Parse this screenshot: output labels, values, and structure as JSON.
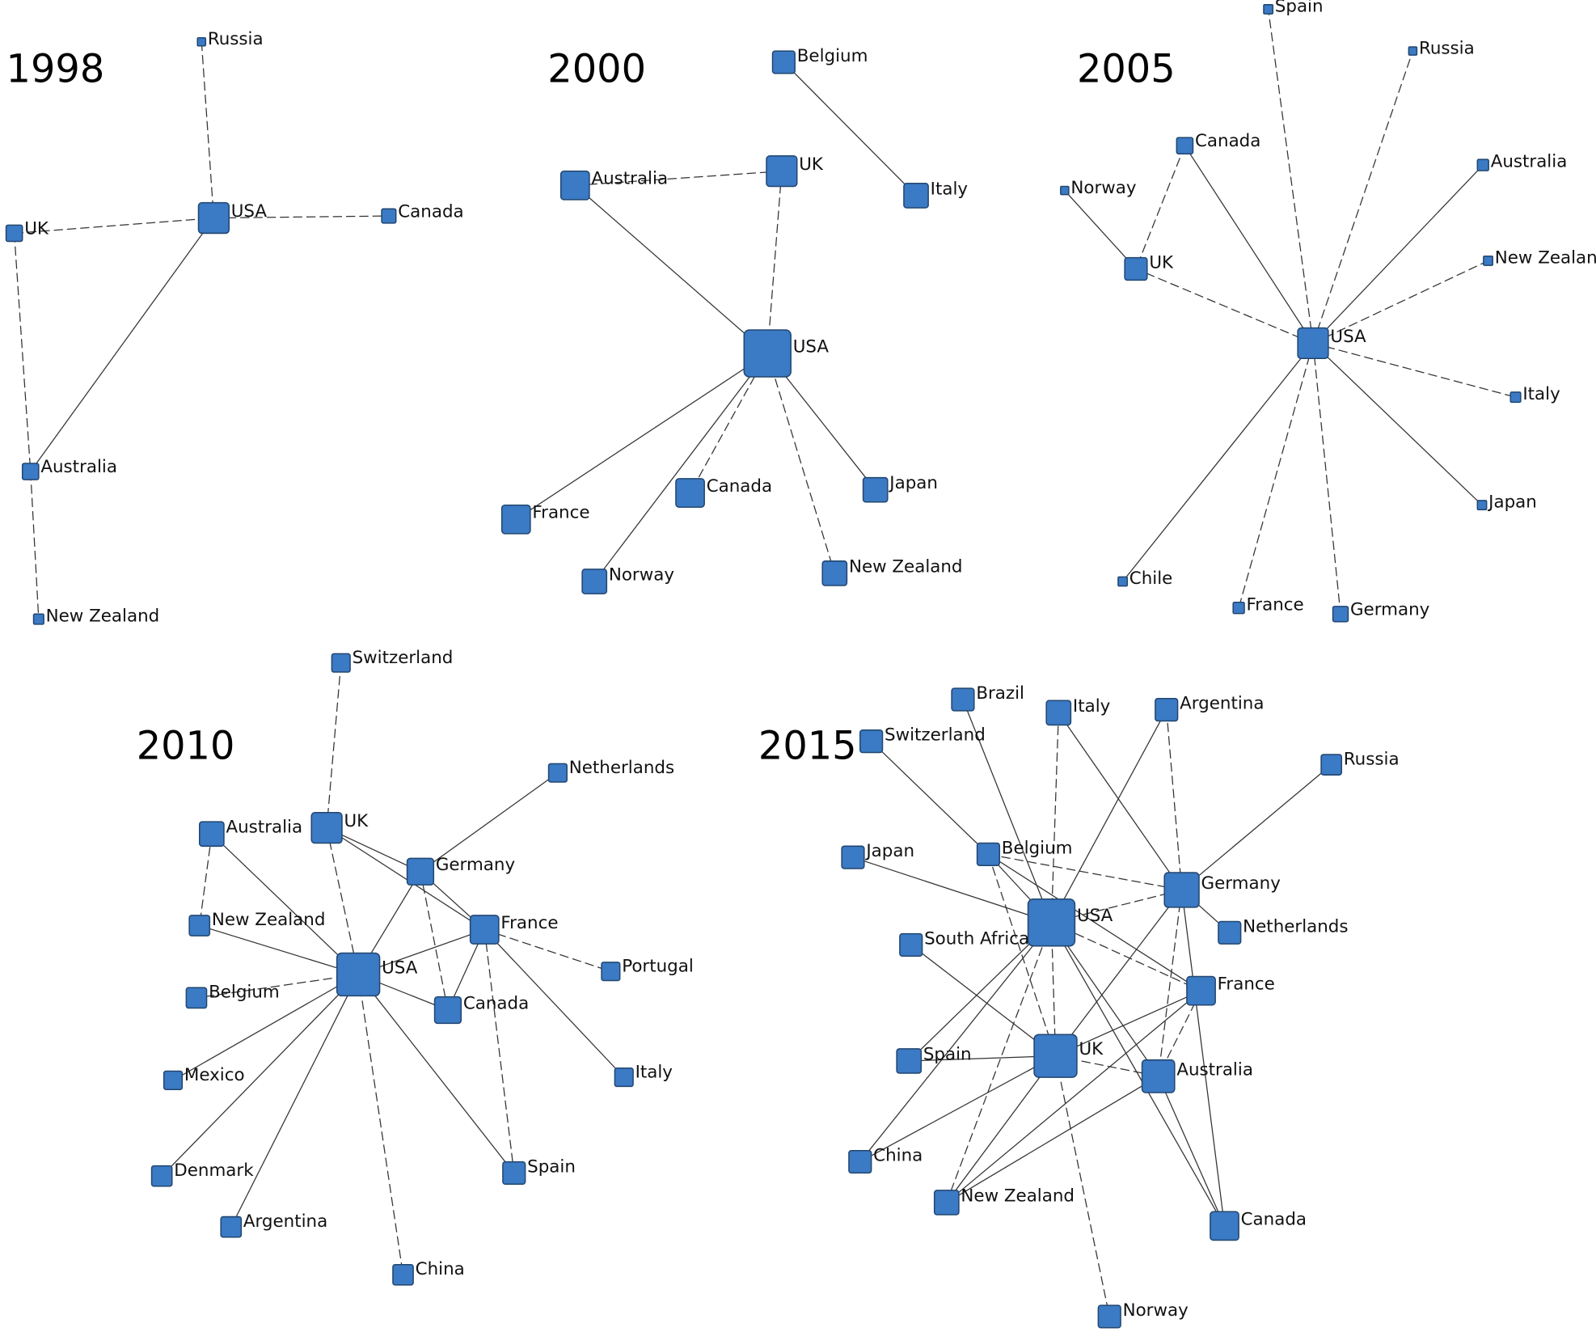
{
  "panels": [
    {
      "title": "1998",
      "nodes": [
        "Russia",
        "USA",
        "Canada",
        "UK",
        "Australia",
        "New Zealand"
      ]
    },
    {
      "title": "2000",
      "nodes": [
        "Belgium",
        "Italy",
        "UK",
        "Australia",
        "USA",
        "France",
        "Canada",
        "Norway",
        "Japan",
        "New Zealand"
      ]
    },
    {
      "title": "2005",
      "nodes": [
        "Spain",
        "Russia",
        "Canada",
        "Australia",
        "Norway",
        "New Zealand",
        "UK",
        "USA",
        "Italy",
        "Japan",
        "Chile",
        "France",
        "Germany"
      ]
    },
    {
      "title": "2010",
      "nodes": [
        "Switzerland",
        "Netherlands",
        "UK",
        "Australia",
        "Germany",
        "France",
        "New Zealand",
        "USA",
        "Portugal",
        "Belgium",
        "Canada",
        "Mexico",
        "Italy",
        "Denmark",
        "Spain",
        "Argentina",
        "China"
      ]
    },
    {
      "title": "2015",
      "nodes": [
        "Brazil",
        "Italy",
        "Argentina",
        "Switzerland",
        "Russia",
        "Japan",
        "Belgium",
        "Germany",
        "USA",
        "Netherlands",
        "South Africa",
        "France",
        "Spain",
        "UK",
        "Australia",
        "China",
        "New Zealand",
        "Canada",
        "Norway"
      ]
    }
  ]
}
